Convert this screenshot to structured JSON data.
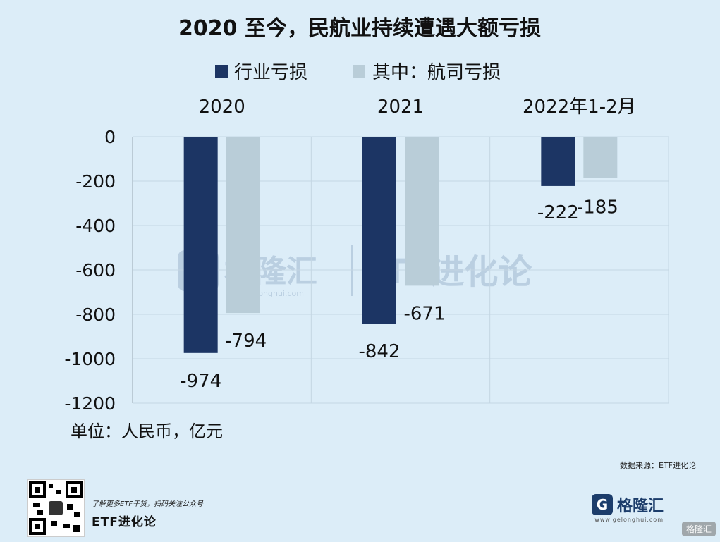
{
  "chart_data": {
    "type": "bar",
    "title": "2020 至今，民航业持续遭遇大额亏损",
    "categories": [
      "2020",
      "2021",
      "2022年1-2月"
    ],
    "series": [
      {
        "name": "行业亏损",
        "values": [
          -974,
          -842,
          -222
        ],
        "color": "#1c3564"
      },
      {
        "name": "其中：航司亏损",
        "values": [
          -794,
          -671,
          -185
        ],
        "color": "#b9cdd8"
      }
    ],
    "y_ticks": [
      "0",
      "-200",
      "-400",
      "-600",
      "-800",
      "-1000",
      "-1200"
    ],
    "ylim": [
      -1200,
      0
    ],
    "unit_label": "单位：人民币，亿元",
    "legend_position": "top",
    "grid": true
  },
  "watermark": {
    "text": "格隆汇",
    "url": "www.gelonghui.com",
    "etf": "ETF进化论"
  },
  "footer": {
    "source": "数据来源：ETF进化论",
    "promo": "了解更多ETF干货，扫码关注公众号",
    "brand": "ETF进化论",
    "logo_mark": "G",
    "logo_text": "格隆汇",
    "logo_url": "www.gelonghui.com",
    "corner_logo": "格隆汇"
  }
}
